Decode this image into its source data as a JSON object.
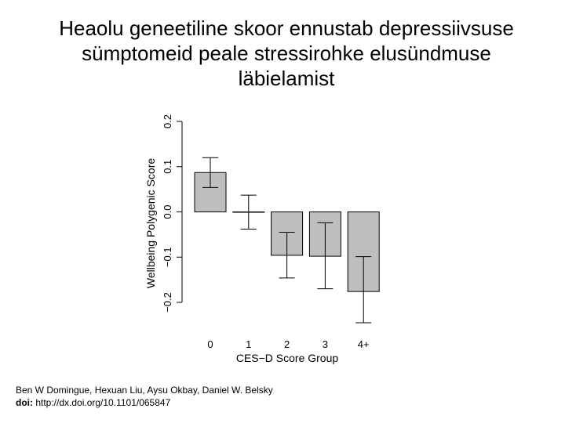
{
  "slide": {
    "title_lines": [
      "Heaolu geneetiline skoor ennustab depressiivsuse",
      "sümptomeid peale stressirohke elusündmuse",
      "läbielamist"
    ]
  },
  "citation": {
    "authors": "Ben W Domingue, Hexuan Liu, Aysu Okbay, Daniel W. Belsky",
    "doi_label": "doi:",
    "doi_value": " http://dx.doi.org/10.1101/065847"
  },
  "chart_data": {
    "type": "bar",
    "xlabel": "CES−D Score Group",
    "ylabel": "Wellbeing Polygenic Score",
    "categories": [
      "0",
      "1",
      "2",
      "3",
      "4+"
    ],
    "values": [
      0.087,
      0.0,
      -0.096,
      -0.098,
      -0.176
    ],
    "error_low": [
      0.054,
      -0.038,
      -0.146,
      -0.17,
      -0.245
    ],
    "error_high": [
      0.12,
      0.037,
      -0.045,
      -0.024,
      -0.099
    ],
    "yticks": [
      -0.2,
      -0.1,
      0.0,
      0.1,
      0.2
    ],
    "ytick_labels": [
      "−0.2",
      "−0.1",
      "0.0",
      "0.1",
      "0.2"
    ],
    "ylim": [
      -0.2,
      0.2
    ],
    "bar_color": "#bebebe",
    "grid": false
  }
}
